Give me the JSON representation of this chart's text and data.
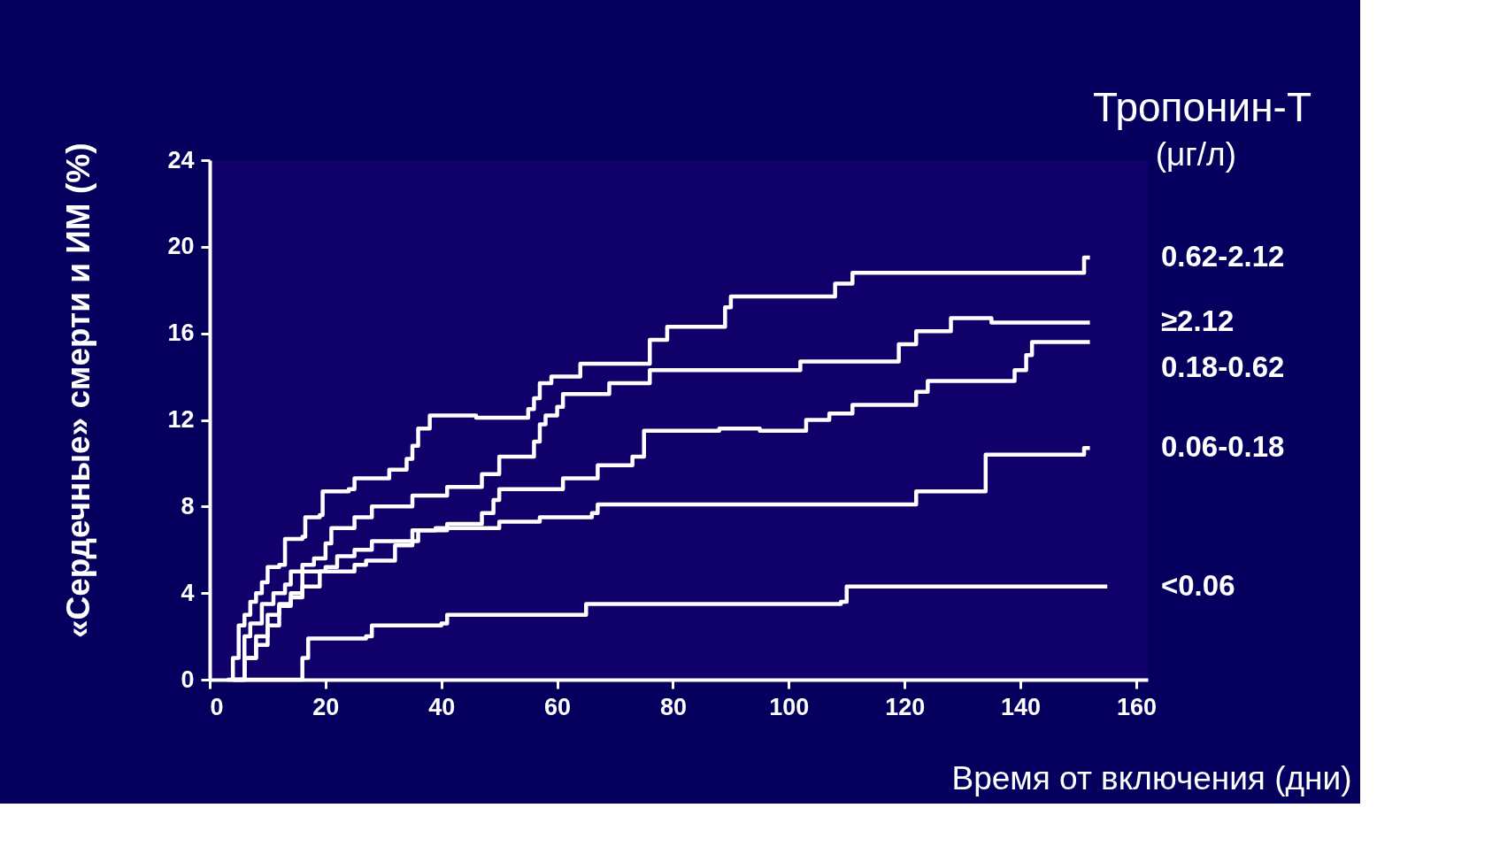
{
  "chart_data": {
    "type": "step",
    "xlabel": "Время от включения (дни)",
    "ylabel": "«Сердечные» смерти и ИМ (%)",
    "legend_title": "Тропонин-Т",
    "annotations": [
      "(μг/л)"
    ],
    "xlim": [
      0,
      162
    ],
    "xticks": [
      0,
      20,
      40,
      60,
      80,
      100,
      120,
      140,
      160
    ],
    "ylim": [
      0,
      24
    ],
    "yticks": [
      0,
      4,
      8,
      12,
      16,
      20,
      24
    ],
    "grid": false,
    "legend": false,
    "marker": "none",
    "line_style": "solid",
    "series": [
      {
        "name": "0.62-2.12",
        "color": "#ffffff",
        "x": [
          3,
          4,
          5,
          6,
          7,
          8,
          9,
          10,
          12,
          13,
          16,
          16.5,
          19,
          19.5,
          24,
          25,
          31,
          34,
          35,
          36,
          38,
          46,
          55,
          56,
          57,
          59,
          64,
          76,
          79,
          89,
          90,
          108,
          111,
          151,
          152
        ],
        "values": [
          0,
          1,
          2.5,
          3,
          3.6,
          4,
          4.5,
          5.2,
          5.3,
          6.5,
          6.6,
          7.5,
          7.6,
          8.7,
          8.8,
          9.3,
          9.7,
          10.2,
          10.8,
          11.6,
          12.2,
          12.1,
          12.5,
          13,
          13.7,
          14,
          14.6,
          15.7,
          16.3,
          17.2,
          17.7,
          18.3,
          18.8,
          19.5,
          19.5
        ]
      },
      {
        "name": "≥2.12",
        "color": "#ffffff",
        "x": [
          4,
          6,
          7,
          9,
          11,
          13,
          14,
          16,
          18,
          20,
          21,
          25,
          28,
          35,
          41,
          47,
          50,
          56,
          57,
          58,
          60,
          61,
          69,
          76,
          102,
          119,
          122,
          128,
          135,
          152
        ],
        "values": [
          0,
          2,
          2.6,
          3.5,
          4,
          4.4,
          5,
          5.3,
          5.6,
          6.3,
          7,
          7.5,
          8,
          8.5,
          8.9,
          9.5,
          10.3,
          11,
          11.8,
          12.2,
          12.6,
          13.2,
          13.7,
          14.3,
          14.7,
          15.5,
          16.1,
          16.7,
          16.5,
          16.5
        ]
      },
      {
        "name": "0.18-0.62",
        "color": "#ffffff",
        "x": [
          4,
          6,
          8,
          10,
          12,
          14,
          16,
          20,
          22,
          25,
          28,
          36,
          41,
          47,
          49,
          50,
          61,
          67,
          73,
          75,
          88,
          95,
          103,
          107,
          111,
          122,
          124,
          139,
          141,
          142,
          152
        ],
        "values": [
          0,
          1,
          1.6,
          2.5,
          3.4,
          3.8,
          5,
          5.2,
          5.7,
          6,
          6.4,
          6.9,
          7.2,
          7.7,
          8.3,
          8.8,
          9.3,
          9.9,
          10.3,
          11.5,
          11.6,
          11.5,
          12,
          12.3,
          12.7,
          13.3,
          13.8,
          14.3,
          15,
          15.6,
          15.6
        ]
      },
      {
        "name": "0.06-0.18",
        "color": "#ffffff",
        "x": [
          4,
          6,
          8,
          10,
          12,
          14,
          16,
          19,
          25,
          27,
          32,
          35,
          39,
          50,
          57,
          66,
          67,
          121,
          122,
          133,
          134,
          150,
          151,
          152
        ],
        "values": [
          0,
          1,
          2,
          3,
          3.5,
          4,
          4.3,
          5,
          5.3,
          5.5,
          6.2,
          6.9,
          7,
          7.3,
          7.5,
          7.7,
          8.1,
          8.1,
          8.7,
          8.7,
          10.4,
          10.4,
          10.7,
          10.7
        ]
      },
      {
        "name": "<0.06",
        "color": "#ffffff",
        "x": [
          5,
          15,
          16,
          17,
          27,
          28,
          40,
          41,
          64,
          65,
          109,
          110,
          155
        ],
        "values": [
          0,
          0,
          1,
          1.9,
          2,
          2.5,
          2.6,
          3,
          3,
          3.5,
          3.6,
          4.3,
          4.3
        ]
      }
    ]
  }
}
